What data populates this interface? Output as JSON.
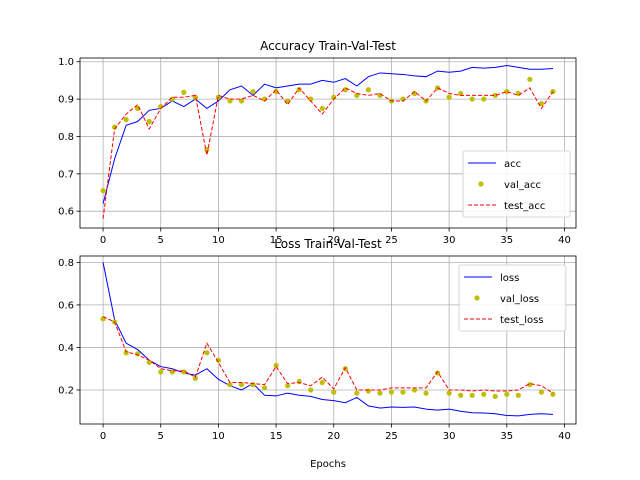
{
  "figure": {
    "xlabel": "Epochs"
  },
  "chart_data": [
    {
      "type": "line",
      "title": "Accuracy Train-Val-Test",
      "xlabel": "",
      "ylabel": "",
      "xlim": [
        -2,
        41
      ],
      "ylim": [
        0.555,
        1.01
      ],
      "xticks": [
        0,
        5,
        10,
        15,
        20,
        25,
        30,
        35,
        40
      ],
      "yticks": [
        0.6,
        0.7,
        0.8,
        0.9,
        1.0
      ],
      "ytick_labels": [
        "0.6",
        "0.7",
        "0.8",
        "0.9",
        "1.0"
      ],
      "grid": true,
      "legend_position": "lower-right",
      "x": [
        0,
        1,
        2,
        3,
        4,
        5,
        6,
        7,
        8,
        9,
        10,
        11,
        12,
        13,
        14,
        15,
        16,
        17,
        18,
        19,
        20,
        21,
        22,
        23,
        24,
        25,
        26,
        27,
        28,
        29,
        30,
        31,
        32,
        33,
        34,
        35,
        36,
        37,
        38,
        39
      ],
      "series": [
        {
          "name": "acc",
          "color": "#0000ff",
          "style": "solid",
          "values": [
            0.62,
            0.74,
            0.83,
            0.84,
            0.87,
            0.875,
            0.895,
            0.88,
            0.9,
            0.875,
            0.895,
            0.925,
            0.935,
            0.91,
            0.94,
            0.93,
            0.935,
            0.94,
            0.94,
            0.95,
            0.945,
            0.955,
            0.935,
            0.96,
            0.97,
            0.968,
            0.966,
            0.962,
            0.96,
            0.975,
            0.972,
            0.975,
            0.985,
            0.983,
            0.985,
            0.99,
            0.985,
            0.98,
            0.98,
            0.982
          ]
        },
        {
          "name": "val_acc",
          "color": "#bfbf00",
          "style": "dots",
          "values": [
            0.655,
            0.825,
            0.845,
            0.875,
            0.84,
            0.88,
            0.9,
            0.918,
            0.905,
            0.765,
            0.905,
            0.895,
            0.895,
            0.92,
            0.9,
            0.92,
            0.895,
            0.925,
            0.9,
            0.875,
            0.905,
            0.925,
            0.91,
            0.925,
            0.91,
            0.895,
            0.9,
            0.915,
            0.895,
            0.93,
            0.905,
            0.915,
            0.9,
            0.9,
            0.91,
            0.92,
            0.915,
            0.953,
            0.888,
            0.92
          ]
        },
        {
          "name": "test_acc",
          "color": "#ff0000",
          "style": "dashed",
          "values": [
            0.58,
            0.82,
            0.86,
            0.885,
            0.82,
            0.875,
            0.905,
            0.905,
            0.91,
            0.75,
            0.91,
            0.9,
            0.9,
            0.91,
            0.895,
            0.925,
            0.885,
            0.93,
            0.895,
            0.86,
            0.9,
            0.93,
            0.915,
            0.91,
            0.915,
            0.895,
            0.895,
            0.92,
            0.895,
            0.93,
            0.915,
            0.91,
            0.91,
            0.91,
            0.91,
            0.92,
            0.91,
            0.93,
            0.875,
            0.92
          ]
        }
      ]
    },
    {
      "type": "line",
      "title": "Loss Train-Val-Test",
      "xlabel": "Epochs",
      "ylabel": "",
      "xlim": [
        -2,
        41
      ],
      "ylim": [
        0.04,
        0.83
      ],
      "xticks": [
        0,
        5,
        10,
        15,
        20,
        25,
        30,
        35,
        40
      ],
      "yticks": [
        0.2,
        0.4,
        0.6,
        0.8
      ],
      "ytick_labels": [
        "0.2",
        "0.4",
        "0.6",
        "0.8"
      ],
      "grid": true,
      "legend_position": "upper-right",
      "x": [
        0,
        1,
        2,
        3,
        4,
        5,
        6,
        7,
        8,
        9,
        10,
        11,
        12,
        13,
        14,
        15,
        16,
        17,
        18,
        19,
        20,
        21,
        22,
        23,
        24,
        25,
        26,
        27,
        28,
        29,
        30,
        31,
        32,
        33,
        34,
        35,
        36,
        37,
        38,
        39
      ],
      "series": [
        {
          "name": "loss",
          "color": "#0000ff",
          "style": "solid",
          "values": [
            0.8,
            0.53,
            0.42,
            0.39,
            0.34,
            0.31,
            0.3,
            0.28,
            0.27,
            0.3,
            0.25,
            0.22,
            0.2,
            0.23,
            0.175,
            0.172,
            0.185,
            0.175,
            0.17,
            0.155,
            0.15,
            0.14,
            0.165,
            0.125,
            0.115,
            0.12,
            0.118,
            0.12,
            0.11,
            0.105,
            0.11,
            0.1,
            0.093,
            0.092,
            0.088,
            0.08,
            0.078,
            0.085,
            0.088,
            0.085
          ]
        },
        {
          "name": "val_loss",
          "color": "#bfbf00",
          "style": "dots",
          "values": [
            0.535,
            0.52,
            0.375,
            0.37,
            0.33,
            0.285,
            0.285,
            0.285,
            0.255,
            0.375,
            0.34,
            0.225,
            0.225,
            0.225,
            0.21,
            0.315,
            0.22,
            0.24,
            0.2,
            0.235,
            0.19,
            0.3,
            0.185,
            0.195,
            0.185,
            0.19,
            0.19,
            0.2,
            0.185,
            0.28,
            0.185,
            0.175,
            0.175,
            0.18,
            0.17,
            0.18,
            0.175,
            0.225,
            0.19,
            0.18
          ]
        },
        {
          "name": "test_loss",
          "color": "#ff0000",
          "style": "dashed",
          "values": [
            0.545,
            0.52,
            0.38,
            0.365,
            0.34,
            0.3,
            0.29,
            0.29,
            0.26,
            0.42,
            0.33,
            0.235,
            0.235,
            0.23,
            0.225,
            0.31,
            0.23,
            0.235,
            0.22,
            0.26,
            0.205,
            0.305,
            0.2,
            0.2,
            0.2,
            0.21,
            0.21,
            0.21,
            0.21,
            0.285,
            0.2,
            0.2,
            0.195,
            0.2,
            0.195,
            0.195,
            0.2,
            0.23,
            0.22,
            0.185
          ]
        }
      ]
    }
  ]
}
